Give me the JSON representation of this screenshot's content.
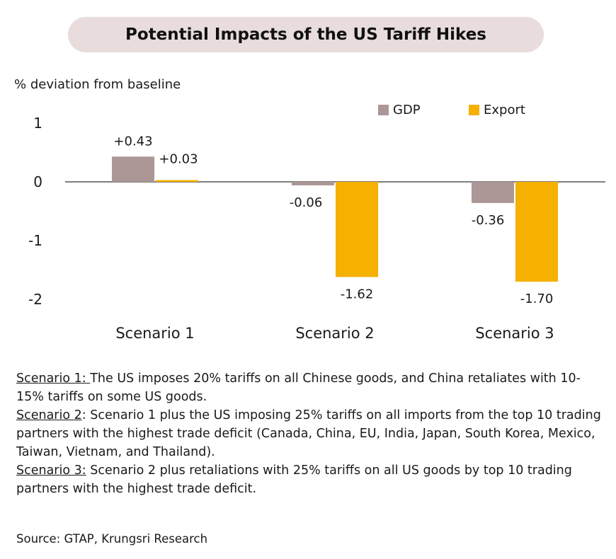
{
  "chart_data": {
    "type": "bar",
    "title": "Potential Impacts of the US Tariff Hikes",
    "ylabel": "% deviation from baseline",
    "categories": [
      "Scenario 1",
      "Scenario 2",
      "Scenario 3"
    ],
    "series": [
      {
        "name": "GDP",
        "values": [
          0.43,
          -0.06,
          -0.36
        ],
        "labels": [
          "+0.43",
          "-0.06",
          "-0.36"
        ],
        "color": "#ad9696"
      },
      {
        "name": "Export",
        "values": [
          0.03,
          -1.62,
          -1.7
        ],
        "labels": [
          "+0.03",
          "-1.62",
          "-1.70"
        ],
        "color": "#f5b000"
      }
    ],
    "yticks": [
      1,
      0,
      -1,
      -2
    ],
    "ylim": [
      -2,
      1
    ],
    "legend_position": "top-right",
    "grid": false
  },
  "notes": [
    {
      "label": "Scenario 1: ",
      "text": "The US imposes 20% tariffs on all Chinese goods, and China retaliates with 10-15% tariffs on some US goods."
    },
    {
      "label": "Scenario 2",
      "text": ": Scenario 1 plus the US imposing 25% tariffs on all imports from the top 10 trading partners with the highest trade deficit (Canada, China, EU, India, Japan, South Korea, Mexico, Taiwan, Vietnam, and Thailand)."
    },
    {
      "label": "Scenario 3:",
      "text": " Scenario 2 plus retaliations with 25% tariffs on all US goods by top 10 trading partners with the highest trade deficit."
    }
  ],
  "source": "Source: GTAP, Krungsri Research"
}
